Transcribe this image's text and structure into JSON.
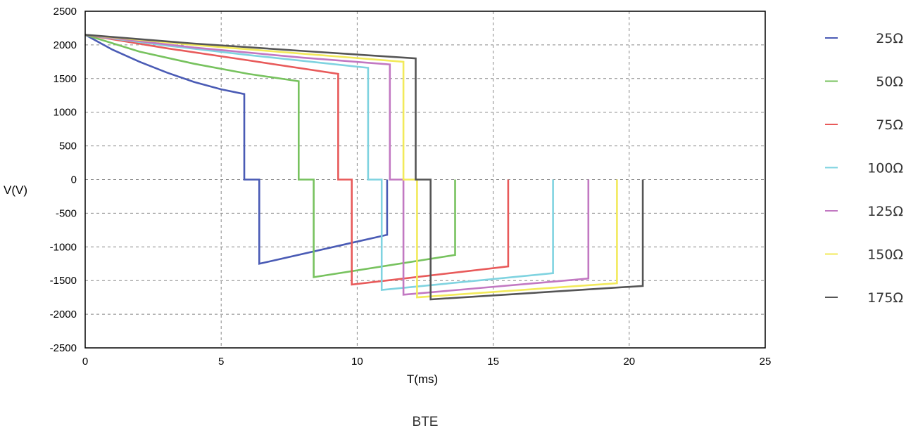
{
  "chart_data": {
    "type": "line",
    "title": "",
    "xlabel": "T(ms)",
    "ylabel": "V(V)",
    "caption": "BTE",
    "xlim": [
      0,
      25
    ],
    "ylim": [
      -2500,
      2500
    ],
    "xticks": [
      0,
      5,
      10,
      15,
      20,
      25
    ],
    "yticks": [
      2500,
      2000,
      1500,
      1000,
      500,
      0,
      -500,
      -1000,
      -1500,
      -2000,
      -2500
    ],
    "grid": true,
    "legend_position": "right",
    "series": [
      {
        "name": "25Ω",
        "color": "#4a5bb5",
        "x": [
          0,
          1,
          2,
          3,
          4,
          5,
          5.85,
          5.85,
          6.4,
          6.4,
          11.1,
          11.1
        ],
        "y": [
          2150,
          1930,
          1750,
          1590,
          1450,
          1340,
          1270,
          0,
          0,
          -1250,
          -820,
          0
        ]
      },
      {
        "name": "50Ω",
        "color": "#77c25e",
        "x": [
          0,
          2,
          4,
          6,
          7.85,
          7.85,
          8.4,
          8.4,
          13.6,
          13.6
        ],
        "y": [
          2150,
          1900,
          1720,
          1570,
          1460,
          0,
          0,
          -1450,
          -1120,
          0
        ]
      },
      {
        "name": "75Ω",
        "color": "#e85a5a",
        "x": [
          0,
          3,
          6,
          9.3,
          9.3,
          9.8,
          9.8,
          15.55,
          15.55
        ],
        "y": [
          2150,
          1950,
          1770,
          1570,
          0,
          0,
          -1560,
          -1290,
          0
        ]
      },
      {
        "name": "100Ω",
        "color": "#7fd3e0",
        "x": [
          0,
          3,
          6,
          10.4,
          10.4,
          10.9,
          10.9,
          17.2,
          17.2
        ],
        "y": [
          2150,
          1990,
          1850,
          1660,
          0,
          0,
          -1640,
          -1390,
          0
        ]
      },
      {
        "name": "125Ω",
        "color": "#c278c2",
        "x": [
          0,
          4,
          8,
          11.2,
          11.2,
          11.7,
          11.7,
          18.5,
          18.5
        ],
        "y": [
          2150,
          1960,
          1810,
          1710,
          0,
          0,
          -1710,
          -1470,
          0
        ]
      },
      {
        "name": "150Ω",
        "color": "#f2ea5a",
        "x": [
          0,
          4,
          8,
          11.7,
          11.7,
          12.2,
          12.2,
          19.55,
          19.55
        ],
        "y": [
          2150,
          2000,
          1870,
          1750,
          0,
          0,
          -1750,
          -1540,
          0
        ]
      },
      {
        "name": "175Ω",
        "color": "#555555",
        "x": [
          0,
          4,
          8,
          12.15,
          12.15,
          12.7,
          12.7,
          20.5,
          20.5
        ],
        "y": [
          2150,
          2020,
          1910,
          1800,
          0,
          0,
          -1780,
          -1580,
          0
        ]
      }
    ]
  }
}
